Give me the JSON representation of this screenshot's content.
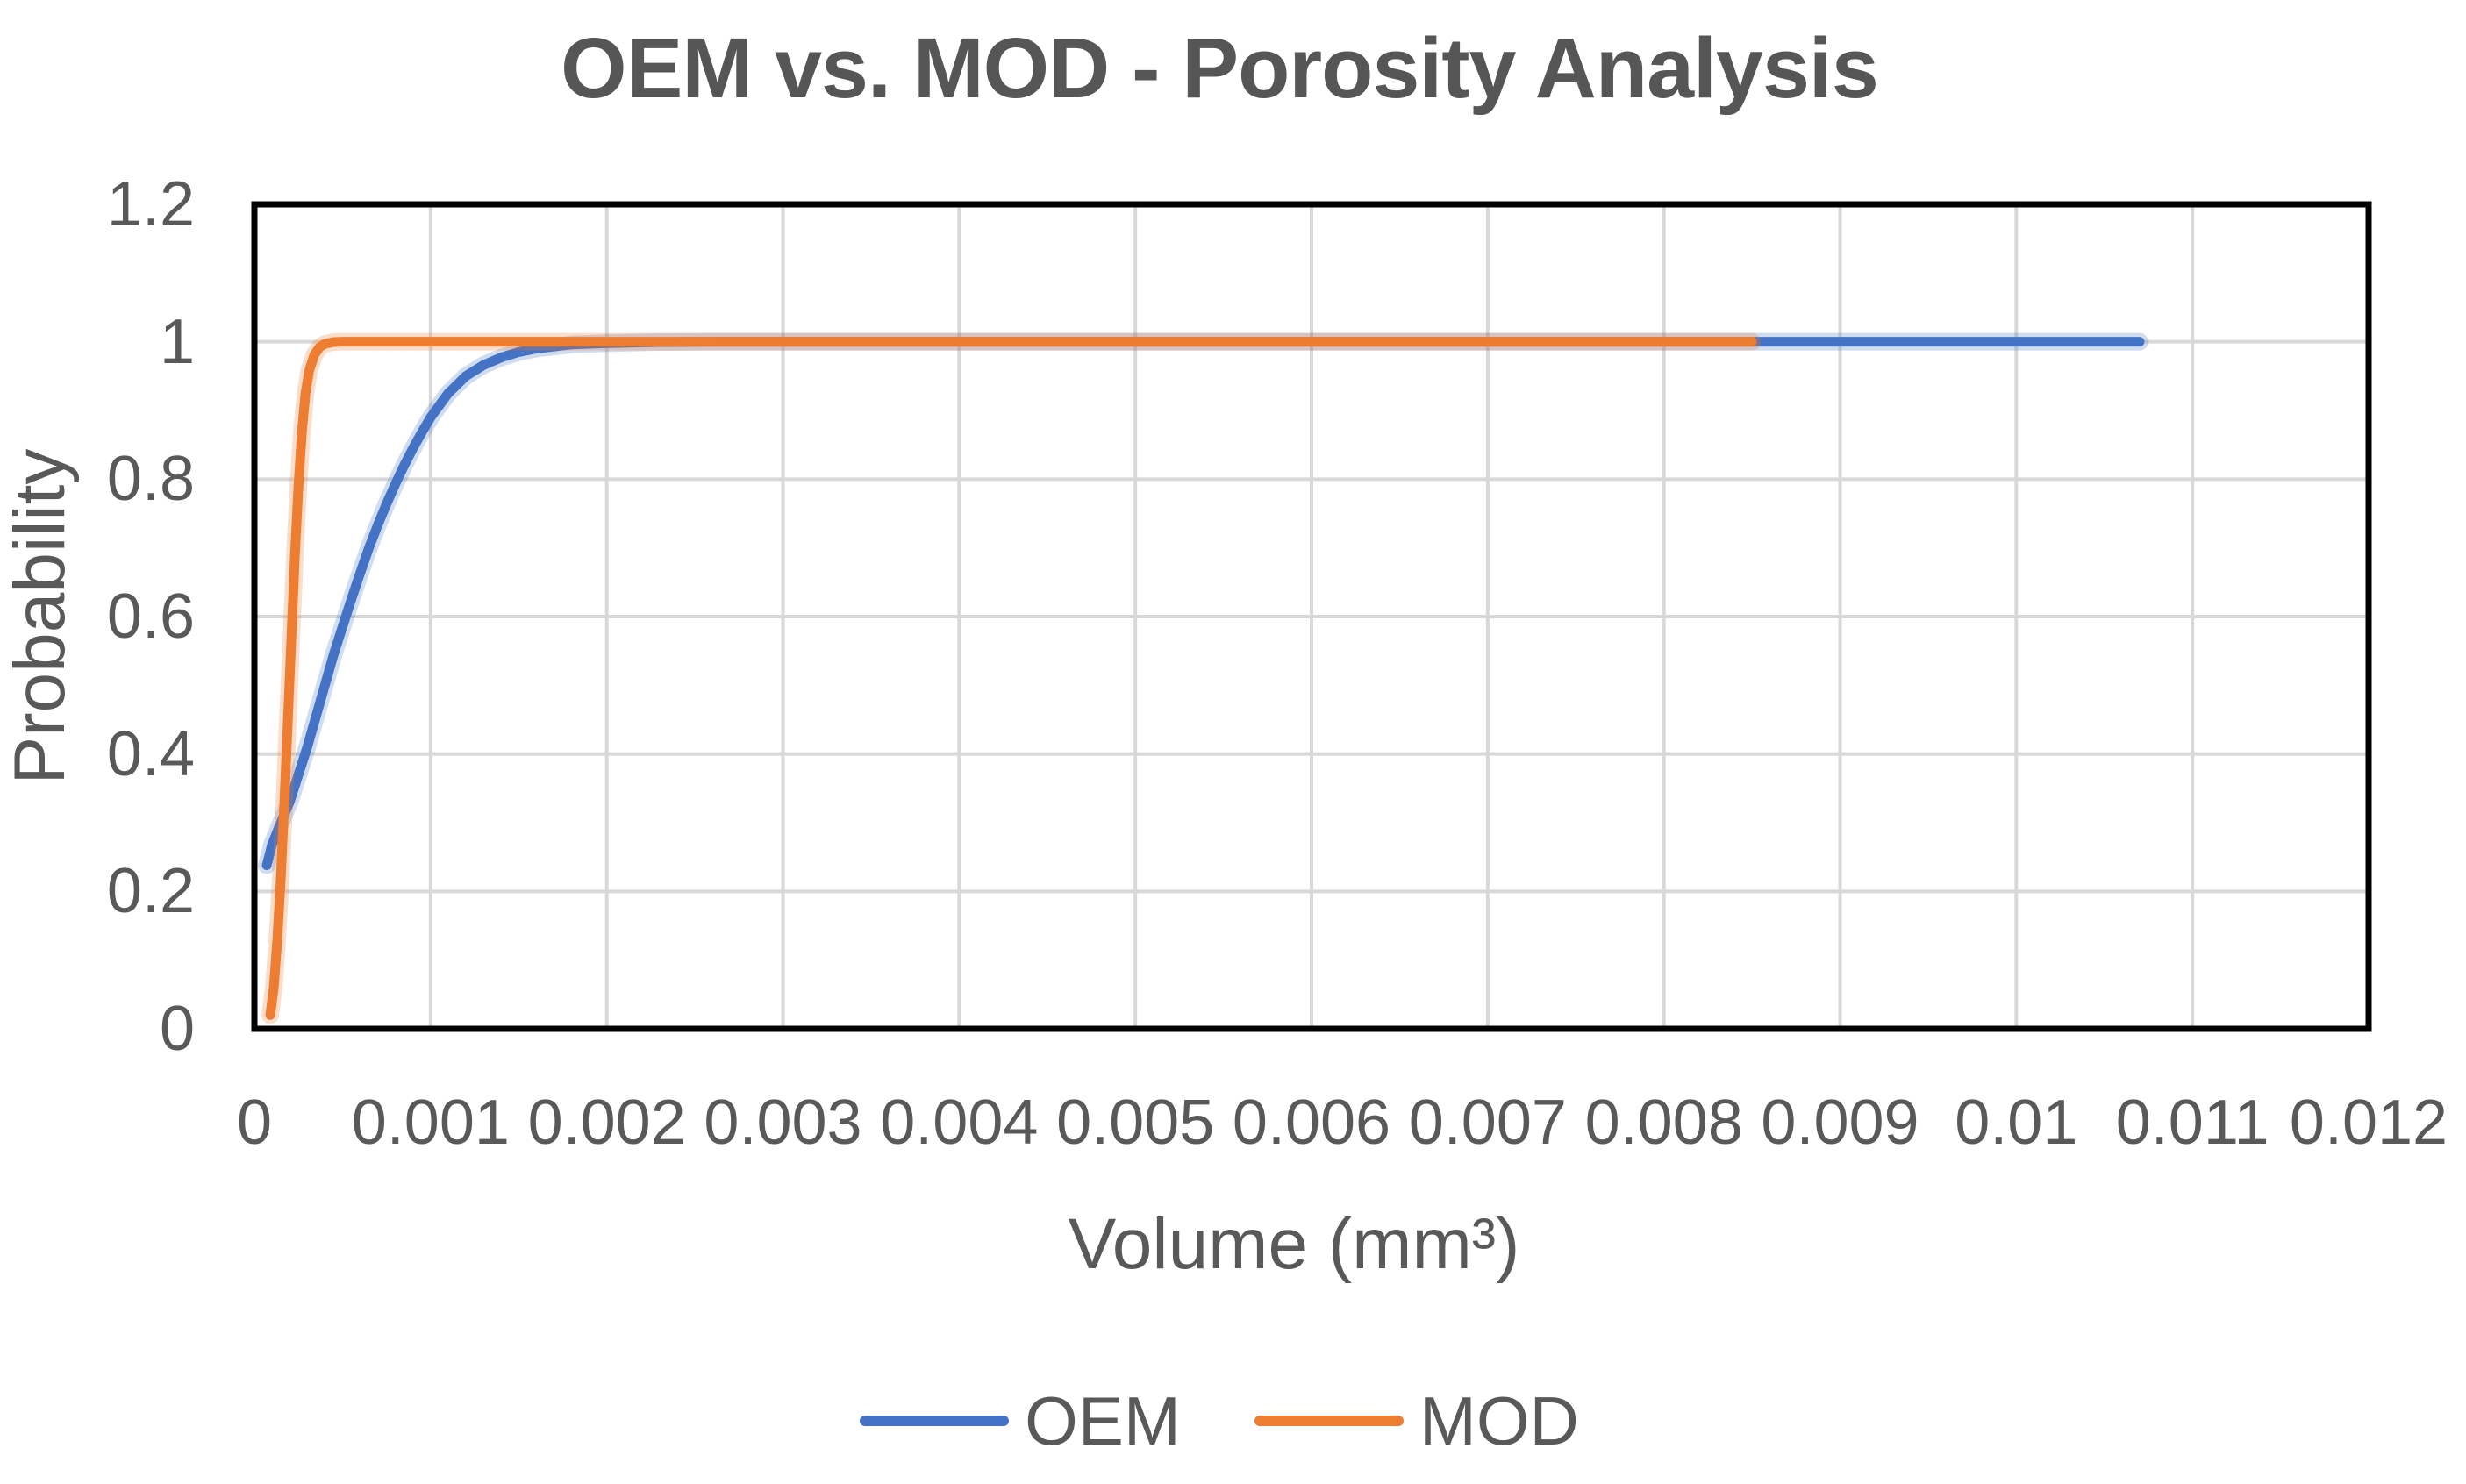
{
  "title": "OEM vs. MOD - Porosity Analysis",
  "axes": {
    "x": {
      "label": "Volume (mm³)",
      "tick_values": [
        0,
        0.001,
        0.002,
        0.003,
        0.004,
        0.005,
        0.006,
        0.007,
        0.008,
        0.009,
        0.01,
        0.011,
        0.012
      ],
      "tick_labels": [
        "0",
        "0.001",
        "0.002",
        "0.003",
        "0.004",
        "0.005",
        "0.006",
        "0.007",
        "0.008",
        "0.009",
        "0.01",
        "0.011",
        "0.012"
      ]
    },
    "y": {
      "label": "Probability",
      "tick_values": [
        0,
        0.2,
        0.4,
        0.6,
        0.8,
        1,
        1.2
      ],
      "tick_labels": [
        "0",
        "0.2",
        "0.4",
        "0.6",
        "0.8",
        "1",
        "1.2"
      ]
    }
  },
  "colors": {
    "oem_line": "#4472C4",
    "mod_line": "#ED7D31",
    "gridline": "#D8D8D8",
    "plot_border": "#000000",
    "text": "#595959",
    "title_text": "#565656"
  },
  "chart_data": {
    "type": "line",
    "title": "OEM vs. MOD - Porosity Analysis",
    "xlabel": "Volume (mm³)",
    "ylabel": "Probability",
    "xlim": [
      0,
      0.012
    ],
    "ylim": [
      0,
      1.2
    ],
    "grid": true,
    "legend_position": "bottom",
    "series": [
      {
        "name": "OEM",
        "color": "#4472C4",
        "points": [
          [
            7e-05,
            0.238
          ],
          [
            0.0001,
            0.268
          ],
          [
            0.00015,
            0.3
          ],
          [
            0.0002,
            0.33
          ],
          [
            0.00025,
            0.37
          ],
          [
            0.0003,
            0.41
          ],
          [
            0.00035,
            0.455
          ],
          [
            0.0004,
            0.5
          ],
          [
            0.00045,
            0.545
          ],
          [
            0.0005,
            0.585
          ],
          [
            0.00055,
            0.625
          ],
          [
            0.0006,
            0.663
          ],
          [
            0.00065,
            0.7
          ],
          [
            0.0007,
            0.733
          ],
          [
            0.00075,
            0.764
          ],
          [
            0.0008,
            0.793
          ],
          [
            0.00085,
            0.82
          ],
          [
            0.0009,
            0.845
          ],
          [
            0.00095,
            0.868
          ],
          [
            0.001,
            0.89
          ],
          [
            0.0011,
            0.925
          ],
          [
            0.0012,
            0.95
          ],
          [
            0.0013,
            0.966
          ],
          [
            0.0014,
            0.977
          ],
          [
            0.0015,
            0.985
          ],
          [
            0.0016,
            0.99
          ],
          [
            0.0018,
            0.996
          ],
          [
            0.002,
            0.998
          ],
          [
            0.0023,
            0.9995
          ],
          [
            0.0026,
            1.0
          ],
          [
            0.004,
            1.0
          ],
          [
            0.006,
            1.0
          ],
          [
            0.008,
            1.0
          ],
          [
            0.0095,
            1.0
          ],
          [
            0.0107,
            1.0
          ]
        ]
      },
      {
        "name": "MOD",
        "color": "#ED7D31",
        "points": [
          [
            9e-05,
            0.02
          ],
          [
            0.00011,
            0.06
          ],
          [
            0.00013,
            0.13
          ],
          [
            0.00015,
            0.22
          ],
          [
            0.00017,
            0.33
          ],
          [
            0.00019,
            0.45
          ],
          [
            0.00021,
            0.57
          ],
          [
            0.00023,
            0.69
          ],
          [
            0.00025,
            0.79
          ],
          [
            0.00027,
            0.87
          ],
          [
            0.00029,
            0.925
          ],
          [
            0.00031,
            0.957
          ],
          [
            0.00034,
            0.981
          ],
          [
            0.00037,
            0.992
          ],
          [
            0.0004,
            0.997
          ],
          [
            0.00045,
            0.9995
          ],
          [
            0.0005,
            1.0
          ],
          [
            0.002,
            1.0
          ],
          [
            0.004,
            1.0
          ],
          [
            0.006,
            1.0
          ],
          [
            0.0085,
            1.0
          ]
        ]
      }
    ]
  }
}
